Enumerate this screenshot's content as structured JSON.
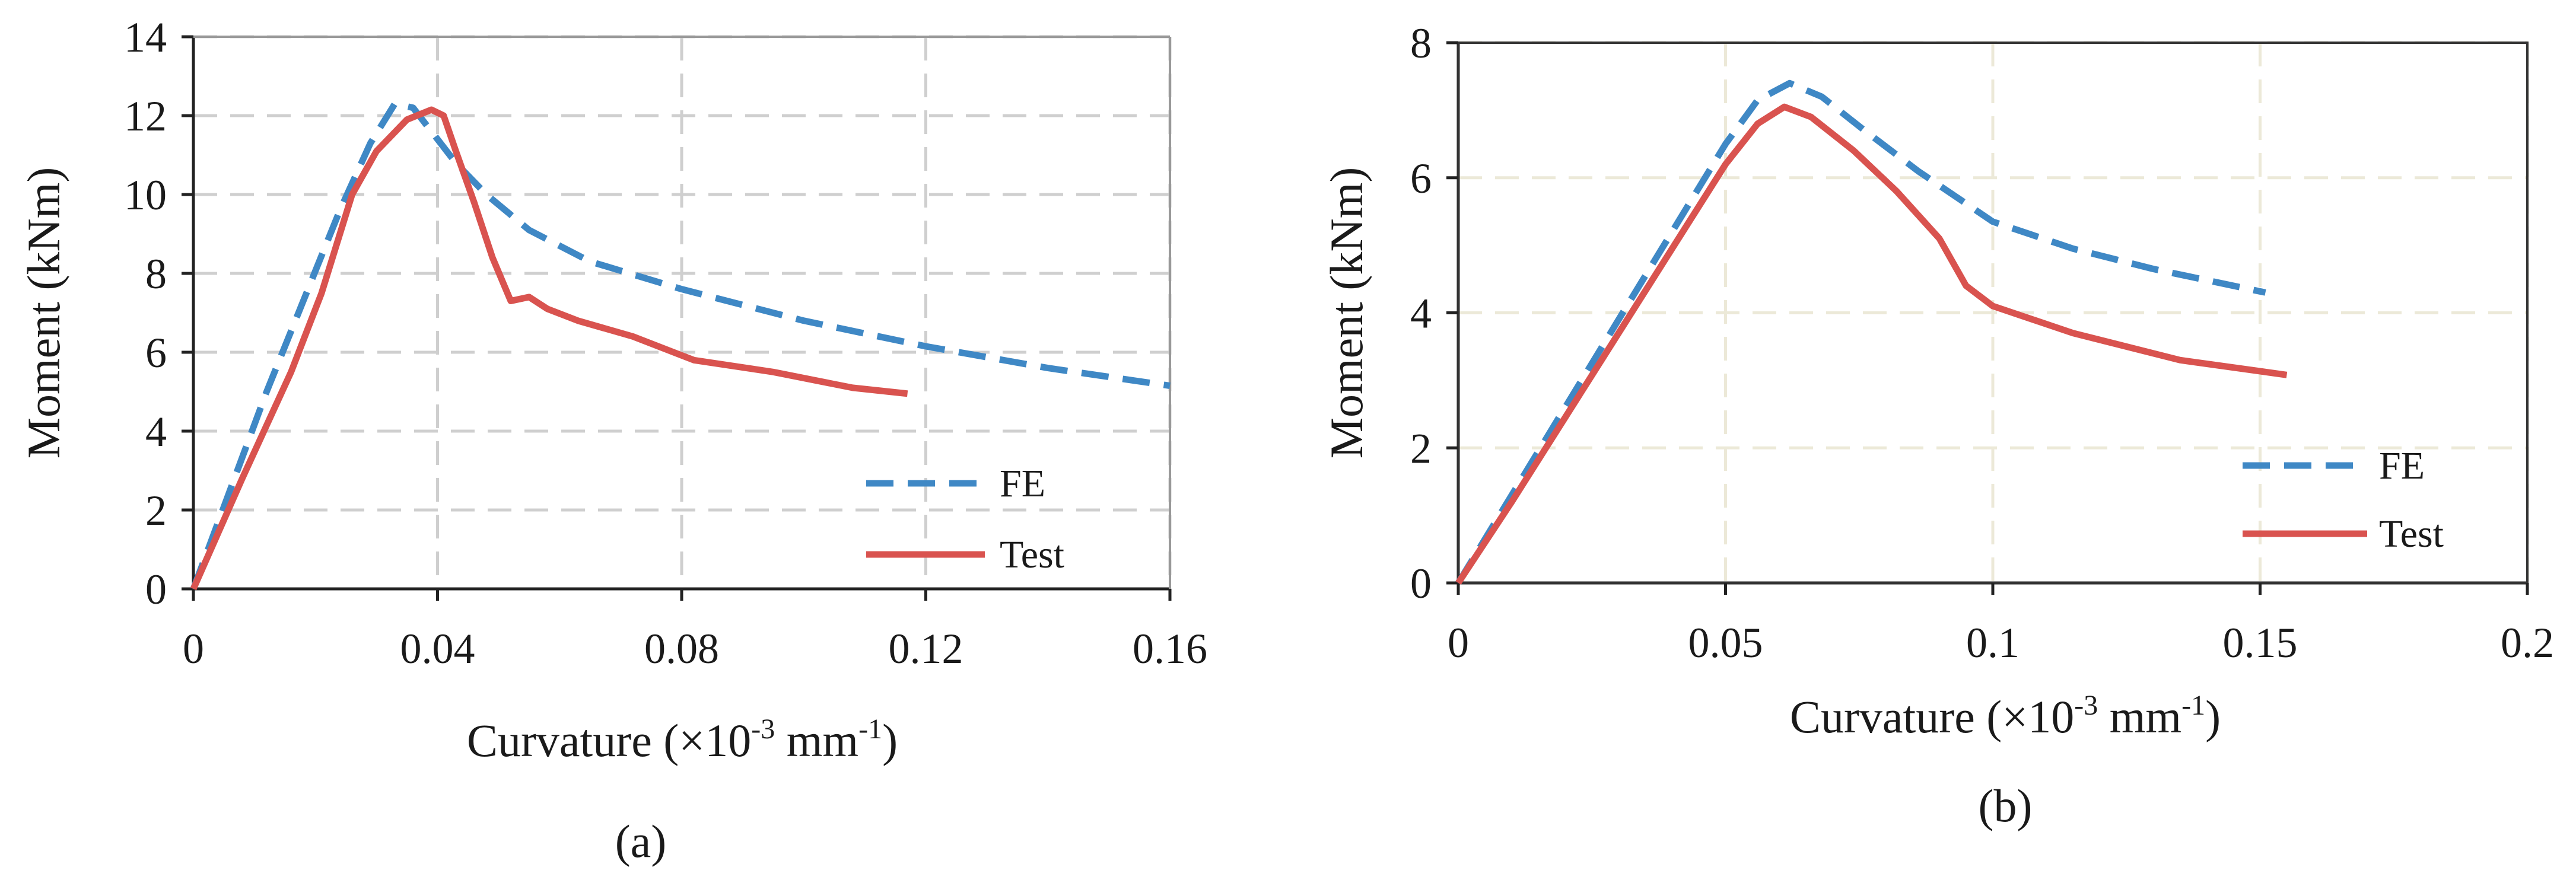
{
  "chart_data": [
    {
      "type": "line",
      "panel_label": "(a)",
      "xlabel": {
        "prefix": "Curvature (×10",
        "exp1": "-3",
        "mid": " mm",
        "exp2": "-1",
        "suffix": ")"
      },
      "ylabel": "Moment (kNm)",
      "xlim": [
        0,
        0.16
      ],
      "ylim": [
        0,
        14
      ],
      "xticks": [
        0,
        0.04,
        0.08,
        0.12,
        0.16
      ],
      "xtick_labels": [
        "0",
        "0.04",
        "0.08",
        "0.12",
        "0.16"
      ],
      "yticks": [
        0,
        2,
        4,
        6,
        8,
        10,
        12,
        14
      ],
      "ytick_labels": [
        "0",
        "2",
        "4",
        "6",
        "8",
        "10",
        "12",
        "14"
      ],
      "grid": "dashed",
      "legend_position": "bottom-right",
      "series": [
        {
          "name": "FE",
          "style": "dashed",
          "color": "#3f88c5",
          "points": [
            [
              0,
              0
            ],
            [
              0.006,
              2.5
            ],
            [
              0.012,
              5
            ],
            [
              0.018,
              7.3
            ],
            [
              0.024,
              9.6
            ],
            [
              0.029,
              11.3
            ],
            [
              0.033,
              12.3
            ],
            [
              0.036,
              12.2
            ],
            [
              0.039,
              11.6
            ],
            [
              0.043,
              10.8
            ],
            [
              0.048,
              10.0
            ],
            [
              0.055,
              9.1
            ],
            [
              0.065,
              8.3
            ],
            [
              0.08,
              7.6
            ],
            [
              0.1,
              6.8
            ],
            [
              0.12,
              6.15
            ],
            [
              0.14,
              5.6
            ],
            [
              0.16,
              5.15
            ]
          ]
        },
        {
          "name": "Test",
          "style": "solid",
          "color": "#d9534f",
          "points": [
            [
              0,
              0
            ],
            [
              0.008,
              2.8
            ],
            [
              0.016,
              5.5
            ],
            [
              0.021,
              7.5
            ],
            [
              0.026,
              10.0
            ],
            [
              0.03,
              11.1
            ],
            [
              0.035,
              11.9
            ],
            [
              0.039,
              12.15
            ],
            [
              0.041,
              12.0
            ],
            [
              0.043,
              11.1
            ],
            [
              0.046,
              9.8
            ],
            [
              0.049,
              8.4
            ],
            [
              0.052,
              7.3
            ],
            [
              0.055,
              7.4
            ],
            [
              0.058,
              7.1
            ],
            [
              0.063,
              6.8
            ],
            [
              0.072,
              6.4
            ],
            [
              0.082,
              5.8
            ],
            [
              0.095,
              5.5
            ],
            [
              0.108,
              5.1
            ],
            [
              0.117,
              4.95
            ]
          ]
        }
      ]
    },
    {
      "type": "line",
      "panel_label": "(b)",
      "xlabel": {
        "prefix": "Curvature (×10",
        "exp1": "-3",
        "mid": " mm",
        "exp2": "-1",
        "suffix": ")"
      },
      "ylabel": "Moment (kNm)",
      "xlim": [
        0,
        0.2
      ],
      "ylim": [
        0,
        8
      ],
      "xticks": [
        0,
        0.05,
        0.1,
        0.15,
        0.2
      ],
      "xtick_labels": [
        "0",
        "0.05",
        "0.1",
        "0.15",
        "0.2"
      ],
      "yticks": [
        0,
        2,
        4,
        6,
        8
      ],
      "ytick_labels": [
        "0",
        "2",
        "4",
        "6",
        "8"
      ],
      "grid": "dashed",
      "legend_position": "bottom-right",
      "series": [
        {
          "name": "FE",
          "style": "dashed",
          "color": "#3f88c5",
          "points": [
            [
              0,
              0
            ],
            [
              0.01,
              1.3
            ],
            [
              0.02,
              2.6
            ],
            [
              0.03,
              3.9
            ],
            [
              0.04,
              5.2
            ],
            [
              0.05,
              6.5
            ],
            [
              0.056,
              7.15
            ],
            [
              0.062,
              7.4
            ],
            [
              0.068,
              7.2
            ],
            [
              0.076,
              6.7
            ],
            [
              0.086,
              6.1
            ],
            [
              0.1,
              5.35
            ],
            [
              0.115,
              4.95
            ],
            [
              0.13,
              4.65
            ],
            [
              0.151,
              4.3
            ]
          ]
        },
        {
          "name": "Test",
          "style": "solid",
          "color": "#d9534f",
          "points": [
            [
              0,
              0
            ],
            [
              0.01,
              1.2
            ],
            [
              0.02,
              2.45
            ],
            [
              0.03,
              3.7
            ],
            [
              0.04,
              4.95
            ],
            [
              0.05,
              6.2
            ],
            [
              0.056,
              6.8
            ],
            [
              0.061,
              7.05
            ],
            [
              0.066,
              6.9
            ],
            [
              0.074,
              6.4
            ],
            [
              0.082,
              5.8
            ],
            [
              0.09,
              5.1
            ],
            [
              0.095,
              4.4
            ],
            [
              0.1,
              4.1
            ],
            [
              0.115,
              3.7
            ],
            [
              0.135,
              3.3
            ],
            [
              0.155,
              3.08
            ]
          ]
        }
      ]
    }
  ]
}
